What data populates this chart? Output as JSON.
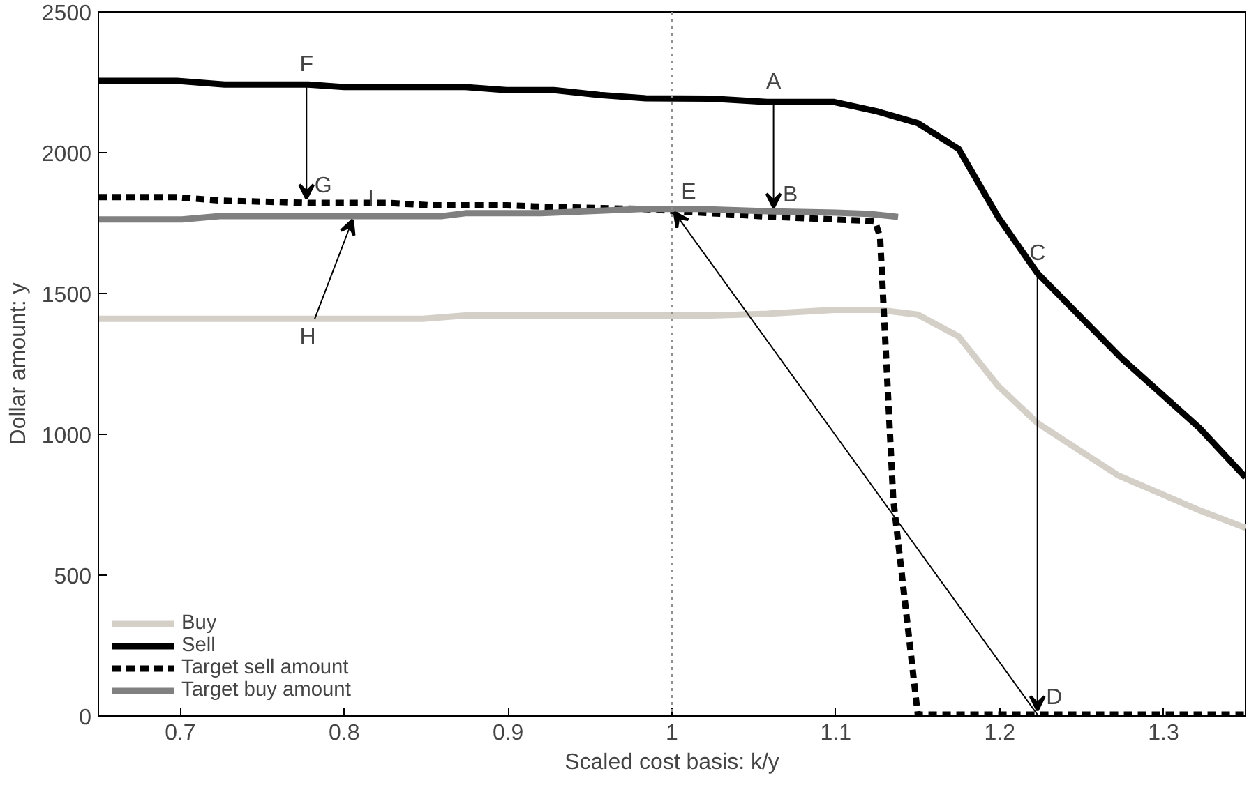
{
  "chart_data": {
    "type": "line",
    "xlabel": "Scaled cost basis: k/y",
    "ylabel": "Dollar amount: y",
    "xlim": [
      0.65,
      1.35
    ],
    "ylim": [
      0,
      2500
    ],
    "xticks": [
      0.7,
      0.8,
      0.9,
      1,
      1.1,
      1.2,
      1.3
    ],
    "yticks": [
      0,
      500,
      1000,
      1500,
      2000,
      2500
    ],
    "grid": false,
    "legend": "bottom left",
    "marker": "none",
    "series": [
      {
        "name": "Buy",
        "color": "#d4d0c8",
        "line_style": "solid",
        "x": [
          0.65,
          0.848,
          0.874,
          1.024,
          1.058,
          1.099,
          1.126,
          1.15,
          1.175,
          1.199,
          1.223,
          1.272,
          1.322,
          1.35
        ],
        "values": [
          1410,
          1410,
          1422,
          1422,
          1428,
          1442,
          1442,
          1425,
          1347,
          1172,
          1040,
          855,
          730,
          668
        ]
      },
      {
        "name": "Sell",
        "color": "#000000",
        "line_style": "solid",
        "x": [
          0.65,
          0.698,
          0.727,
          0.778,
          0.8,
          0.874,
          0.899,
          0.928,
          0.956,
          0.984,
          1.024,
          1.058,
          1.099,
          1.125,
          1.15,
          1.175,
          1.199,
          1.223,
          1.274,
          1.322,
          1.35
        ],
        "values": [
          2255,
          2255,
          2242,
          2242,
          2233,
          2233,
          2222,
          2222,
          2205,
          2193,
          2192,
          2180,
          2180,
          2147,
          2105,
          2013,
          1772,
          1572,
          1272,
          1022,
          847
        ]
      },
      {
        "name": "Target sell amount",
        "color": "#000000",
        "line_style": "dashed",
        "x": [
          0.65,
          0.698,
          0.724,
          0.778,
          0.826,
          0.853,
          0.899,
          0.922,
          0.982,
          1.058,
          1.12,
          1.124,
          1.127,
          1.135,
          1.15,
          1.35
        ],
        "values": [
          1842,
          1842,
          1830,
          1822,
          1822,
          1813,
          1813,
          1808,
          1800,
          1773,
          1758,
          1755,
          1700,
          772,
          5,
          5
        ]
      },
      {
        "name": "Target buy amount",
        "color": "#808080",
        "line_style": "solid",
        "x": [
          0.65,
          0.701,
          0.724,
          0.86,
          0.874,
          0.92,
          0.982,
          1.018,
          1.058,
          1.1,
          1.12,
          1.138
        ],
        "values": [
          1763,
          1763,
          1775,
          1775,
          1785,
          1785,
          1800,
          1800,
          1792,
          1787,
          1783,
          1772
        ]
      }
    ],
    "ref_lines": [
      {
        "axis": "x",
        "value": 1,
        "label": null,
        "color": "#909090",
        "line_style": "dotted"
      }
    ],
    "annotations": [
      {
        "text": "F",
        "x": 0.777,
        "y": 2242
      },
      {
        "text": "G",
        "x": 0.777,
        "y": 1822
      },
      {
        "text": "A",
        "x": 1.062,
        "y": 2180
      },
      {
        "text": "B",
        "x": 1.062,
        "y": 1790
      },
      {
        "text": "C",
        "x": 1.223,
        "y": 1572
      },
      {
        "text": "D",
        "x": 1.223,
        "y": 5
      },
      {
        "text": "E",
        "x": 1.0,
        "y": 1800
      },
      {
        "text": "H",
        "x": 0.782,
        "y": 1410
      },
      {
        "text": "I",
        "x": 0.806,
        "y": 1775
      }
    ]
  }
}
